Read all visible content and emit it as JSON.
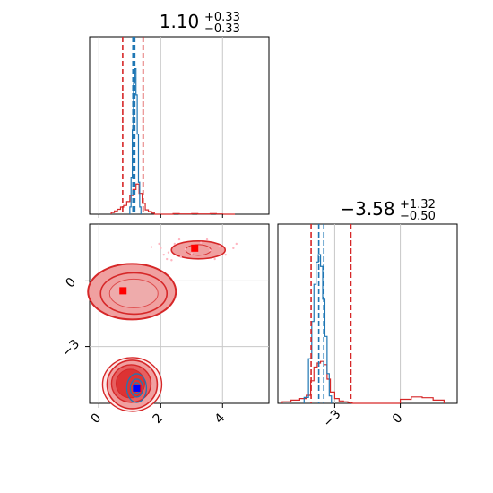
{
  "chart_data": {
    "type": "corner",
    "parameters": [
      {
        "title": {
          "value": "1.10",
          "plus": "+0.33",
          "minus": "−0.33"
        },
        "range": [
          -0.3,
          5.5
        ],
        "ticks": [
          0,
          2,
          4
        ],
        "tick_labels": [
          "0",
          "2",
          "4"
        ]
      },
      {
        "title": {
          "value": "−3.58",
          "plus": "+1.32",
          "minus": "−0.50"
        },
        "range": [
          -5.6,
          2.6
        ],
        "ticks": [
          -3,
          0
        ],
        "tick_labels": [
          "−3",
          "0"
        ]
      }
    ],
    "grid": true,
    "colors": {
      "red": "#d62728",
      "blue": "#1f77b4",
      "red_fill": "#f0a0a0",
      "red_mid": "#e66060",
      "pink": "#ffb6c1"
    },
    "panels": [
      {
        "name": "param1-marginal",
        "quantile_lines": {
          "red": [
            0.77,
            1.43
          ],
          "blue": [
            1.1,
            1.16
          ]
        },
        "red_histogram": {
          "bin_edges": [
            0.4,
            0.5,
            0.6,
            0.7,
            0.8,
            0.9,
            1.0,
            1.1,
            1.2,
            1.3,
            1.4,
            1.5,
            1.6,
            1.7,
            1.8,
            2.4,
            2.6,
            3.0,
            3.2,
            3.6,
            3.8,
            4.0,
            4.4
          ],
          "counts": [
            0.03,
            0.06,
            0.09,
            0.13,
            0.16,
            0.23,
            0.34,
            0.45,
            0.55,
            0.38,
            0.2,
            0.08,
            0.05,
            0.02,
            0,
            0.01,
            0.005,
            0.01,
            0.005,
            0.01,
            0.005,
            0
          ]
        },
        "blue_histogram": {
          "bin_edges": [
            1.0,
            1.04,
            1.08,
            1.12,
            1.16,
            1.2,
            1.24,
            1.28,
            1.32,
            1.36
          ],
          "counts": [
            0.05,
            0.25,
            0.58,
            0.9,
            1.0,
            0.82,
            0.55,
            0.22,
            0.05
          ]
        }
      },
      {
        "name": "param2-marginal",
        "quantile_lines": {
          "red": [
            -4.08,
            -2.26
          ],
          "blue": [
            -3.73,
            -3.5
          ]
        },
        "red_histogram": {
          "bin_edges": [
            -5.4,
            -5.0,
            -4.6,
            -4.3,
            -4.1,
            -3.95,
            -3.8,
            -3.65,
            -3.5,
            -3.35,
            -3.2,
            -3.0,
            -2.8,
            -2.6,
            -2.4,
            -2.2,
            0.0,
            0.5,
            1.0,
            1.5,
            2.0
          ],
          "counts": [
            0.02,
            0.04,
            0.06,
            0.1,
            0.28,
            0.45,
            0.5,
            0.52,
            0.48,
            0.3,
            0.14,
            0.06,
            0.03,
            0.02,
            0.01,
            0.0,
            0.05,
            0.08,
            0.07,
            0.04
          ]
        },
        "blue_histogram": {
          "bin_edges": [
            -4.4,
            -4.2,
            -4.05,
            -3.95,
            -3.85,
            -3.75,
            -3.65,
            -3.55,
            -3.45,
            -3.35,
            -3.25,
            -3.15
          ],
          "counts": [
            0.04,
            0.3,
            0.55,
            0.8,
            0.95,
            1.0,
            0.92,
            0.7,
            0.45,
            0.2,
            0.05
          ]
        }
      },
      {
        "name": "joint-2d",
        "red_modes": [
          {
            "x": 0.78,
            "y": -0.45
          },
          {
            "x": 3.1,
            "y": 1.5
          }
        ],
        "red_center_points": [
          {
            "x": 0.78,
            "y": -0.45
          },
          {
            "x": 3.1,
            "y": 1.5
          },
          {
            "x": 1.25,
            "y": -4.9
          }
        ],
        "blue_center_point": {
          "x": 1.22,
          "y": -4.9
        }
      }
    ]
  }
}
